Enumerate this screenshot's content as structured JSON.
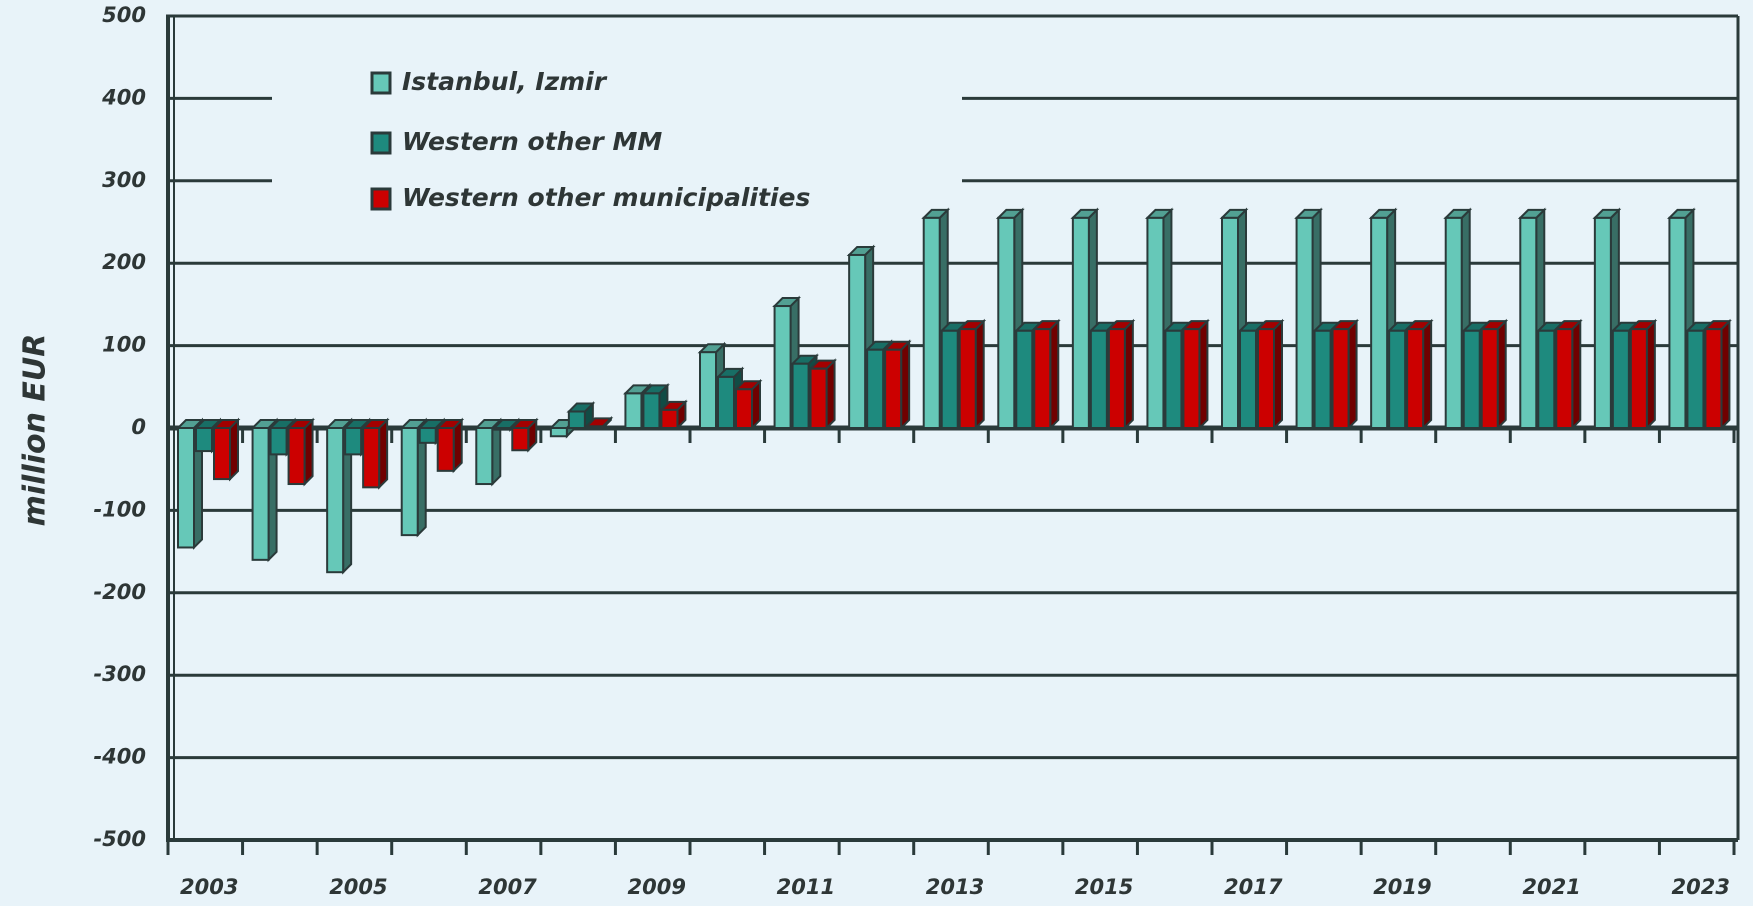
{
  "chart_data": {
    "type": "bar3d",
    "y_label": "million EUR",
    "categories": [
      "2003",
      null,
      "2005",
      null,
      "2007",
      null,
      "2009",
      null,
      "2011",
      null,
      "2013",
      null,
      "2015",
      null,
      "2017",
      null,
      "2019",
      null,
      "2021",
      null,
      "2023"
    ],
    "series": [
      {
        "name": "Istanbul, Izmir",
        "color": "#66c8b8",
        "values": [
          -145,
          -160,
          -175,
          -130,
          -68,
          -10,
          42,
          92,
          148,
          210,
          255,
          255,
          255,
          255,
          255,
          255,
          255,
          255,
          255,
          255,
          255
        ]
      },
      {
        "name": "Western other MM",
        "color": "#1e8a7e",
        "values": [
          -28,
          -32,
          -32,
          -18,
          -2,
          20,
          42,
          62,
          78,
          95,
          118,
          118,
          118,
          118,
          118,
          118,
          118,
          118,
          118,
          118,
          118
        ]
      },
      {
        "name": "Western other municipalities",
        "color": "#cc0000",
        "values": [
          -62,
          -68,
          -72,
          -52,
          -27,
          2,
          22,
          47,
          72,
          95,
          120,
          120,
          120,
          120,
          120,
          120,
          120,
          120,
          120,
          120,
          120
        ]
      }
    ],
    "ylim": [
      -500,
      500
    ],
    "yticks": [
      -500,
      -400,
      -300,
      -200,
      -100,
      0,
      100,
      200,
      300,
      400,
      500
    ],
    "grid": true,
    "legend": "top-left"
  }
}
